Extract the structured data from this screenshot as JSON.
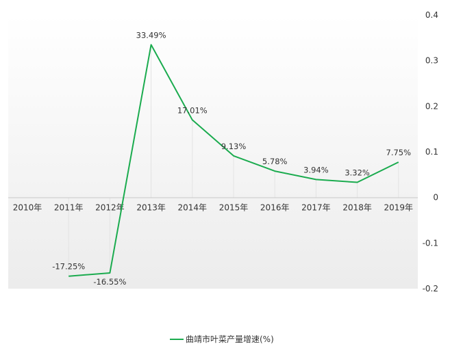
{
  "chart_data": {
    "type": "line",
    "categories": [
      "2010年",
      "2011年",
      "2012年",
      "2013年",
      "2014年",
      "2015年",
      "2016年",
      "2017年",
      "2018年",
      "2019年"
    ],
    "series": [
      {
        "name": "曲靖市叶菜产量增速(%)",
        "values": [
          null,
          -0.1725,
          -0.1655,
          0.3349,
          0.1701,
          0.0913,
          0.0578,
          0.0394,
          0.0332,
          0.0775
        ],
        "labels": [
          "",
          "-17.25%",
          "-16.55%",
          "33.49%",
          "17.01%",
          "9.13%",
          "5.78%",
          "3.94%",
          "3.32%",
          "7.75%"
        ]
      }
    ],
    "yaxis": {
      "position": "right",
      "ticks": [
        -0.2,
        -0.1,
        0,
        0.1,
        0.2,
        0.3,
        0.4
      ],
      "tick_labels": [
        "-0.2",
        "-0.1",
        "0",
        "0.1",
        "0.2",
        "0.3",
        "0.4"
      ],
      "ylim": [
        -0.2,
        0.4
      ]
    },
    "line_color": "#1aab4e",
    "grid": "vertical",
    "legend": "bottom-center"
  }
}
